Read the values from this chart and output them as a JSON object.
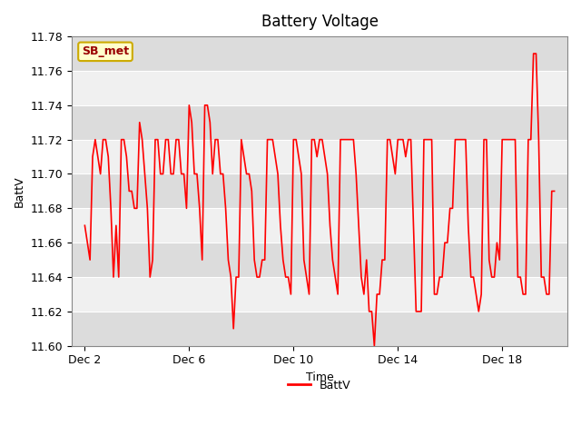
{
  "title": "Battery Voltage",
  "xlabel": "Time",
  "ylabel": "BattV",
  "ylim": [
    11.6,
    11.78
  ],
  "yticks": [
    11.6,
    11.62,
    11.64,
    11.66,
    11.68,
    11.7,
    11.72,
    11.74,
    11.76,
    11.78
  ],
  "xtick_labels": [
    "Dec 2",
    "Dec 6",
    "Dec 10",
    "Dec 14",
    "Dec 18"
  ],
  "xtick_positions": [
    2,
    6,
    10,
    14,
    18
  ],
  "xlim": [
    1.5,
    20.5
  ],
  "line_color": "#ff0000",
  "line_width": 1.2,
  "bg_color": "#ffffff",
  "plot_bg_color": "#f0f0f0",
  "grid_color": "#ffffff",
  "band_color": "#dcdcdc",
  "legend_label": "BattV",
  "tag_text": "SB_met",
  "tag_bg": "#ffffcc",
  "tag_border": "#ccaa00",
  "tag_text_color": "#990000",
  "x": [
    2.0,
    2.1,
    2.2,
    2.3,
    2.4,
    2.5,
    2.6,
    2.7,
    2.8,
    2.9,
    3.0,
    3.1,
    3.2,
    3.3,
    3.4,
    3.5,
    3.6,
    3.7,
    3.8,
    3.9,
    4.0,
    4.1,
    4.2,
    4.3,
    4.4,
    4.5,
    4.6,
    4.7,
    4.8,
    4.9,
    5.0,
    5.1,
    5.2,
    5.3,
    5.4,
    5.5,
    5.6,
    5.7,
    5.8,
    5.9,
    6.0,
    6.1,
    6.2,
    6.3,
    6.4,
    6.5,
    6.6,
    6.7,
    6.8,
    6.9,
    7.0,
    7.1,
    7.2,
    7.3,
    7.4,
    7.5,
    7.6,
    7.7,
    7.8,
    7.9,
    8.0,
    8.1,
    8.2,
    8.3,
    8.4,
    8.5,
    8.6,
    8.7,
    8.8,
    8.9,
    9.0,
    9.1,
    9.2,
    9.3,
    9.4,
    9.5,
    9.6,
    9.7,
    9.8,
    9.9,
    10.0,
    10.1,
    10.2,
    10.3,
    10.4,
    10.5,
    10.6,
    10.7,
    10.8,
    10.9,
    11.0,
    11.1,
    11.2,
    11.3,
    11.4,
    11.5,
    11.6,
    11.7,
    11.8,
    11.9,
    12.0,
    12.1,
    12.2,
    12.3,
    12.4,
    12.5,
    12.6,
    12.7,
    12.8,
    12.9,
    13.0,
    13.1,
    13.2,
    13.3,
    13.4,
    13.5,
    13.6,
    13.7,
    13.8,
    13.9,
    14.0,
    14.1,
    14.2,
    14.3,
    14.4,
    14.5,
    14.6,
    14.7,
    14.8,
    14.9,
    15.0,
    15.1,
    15.2,
    15.3,
    15.4,
    15.5,
    15.6,
    15.7,
    15.8,
    15.9,
    16.0,
    16.1,
    16.2,
    16.3,
    16.4,
    16.5,
    16.6,
    16.7,
    16.8,
    16.9,
    17.0,
    17.1,
    17.2,
    17.3,
    17.4,
    17.5,
    17.6,
    17.7,
    17.8,
    17.9,
    18.0,
    18.1,
    18.2,
    18.3,
    18.4,
    18.5,
    18.6,
    18.7,
    18.8,
    18.9,
    19.0,
    19.1,
    19.2,
    19.3,
    19.4,
    19.5,
    19.6,
    19.7,
    19.8,
    19.9,
    20.0
  ],
  "y": [
    11.67,
    11.66,
    11.65,
    11.71,
    11.72,
    11.71,
    11.7,
    11.72,
    11.72,
    11.71,
    11.68,
    11.64,
    11.67,
    11.64,
    11.72,
    11.72,
    11.71,
    11.69,
    11.69,
    11.68,
    11.68,
    11.73,
    11.72,
    11.7,
    11.68,
    11.64,
    11.65,
    11.72,
    11.72,
    11.7,
    11.7,
    11.72,
    11.72,
    11.7,
    11.7,
    11.72,
    11.72,
    11.7,
    11.7,
    11.68,
    11.74,
    11.73,
    11.7,
    11.7,
    11.68,
    11.65,
    11.74,
    11.74,
    11.73,
    11.7,
    11.72,
    11.72,
    11.7,
    11.7,
    11.68,
    11.65,
    11.64,
    11.61,
    11.64,
    11.64,
    11.72,
    11.71,
    11.7,
    11.7,
    11.69,
    11.65,
    11.64,
    11.64,
    11.65,
    11.65,
    11.72,
    11.72,
    11.72,
    11.71,
    11.7,
    11.67,
    11.65,
    11.64,
    11.64,
    11.63,
    11.72,
    11.72,
    11.71,
    11.7,
    11.65,
    11.64,
    11.63,
    11.72,
    11.72,
    11.71,
    11.72,
    11.72,
    11.71,
    11.7,
    11.67,
    11.65,
    11.64,
    11.63,
    11.72,
    11.72,
    11.72,
    11.72,
    11.72,
    11.72,
    11.7,
    11.67,
    11.64,
    11.63,
    11.65,
    11.62,
    11.62,
    11.6,
    11.63,
    11.63,
    11.65,
    11.65,
    11.72,
    11.72,
    11.71,
    11.7,
    11.72,
    11.72,
    11.72,
    11.71,
    11.72,
    11.72,
    11.67,
    11.62,
    11.62,
    11.62,
    11.72,
    11.72,
    11.72,
    11.72,
    11.63,
    11.63,
    11.64,
    11.64,
    11.66,
    11.66,
    11.68,
    11.68,
    11.72,
    11.72,
    11.72,
    11.72,
    11.72,
    11.67,
    11.64,
    11.64,
    11.63,
    11.62,
    11.63,
    11.72,
    11.72,
    11.65,
    11.64,
    11.64,
    11.66,
    11.65,
    11.72,
    11.72,
    11.72,
    11.72,
    11.72,
    11.72,
    11.64,
    11.64,
    11.63,
    11.63,
    11.72,
    11.72,
    11.77,
    11.77,
    11.72,
    11.64,
    11.64,
    11.63,
    11.63,
    11.69,
    11.69
  ]
}
